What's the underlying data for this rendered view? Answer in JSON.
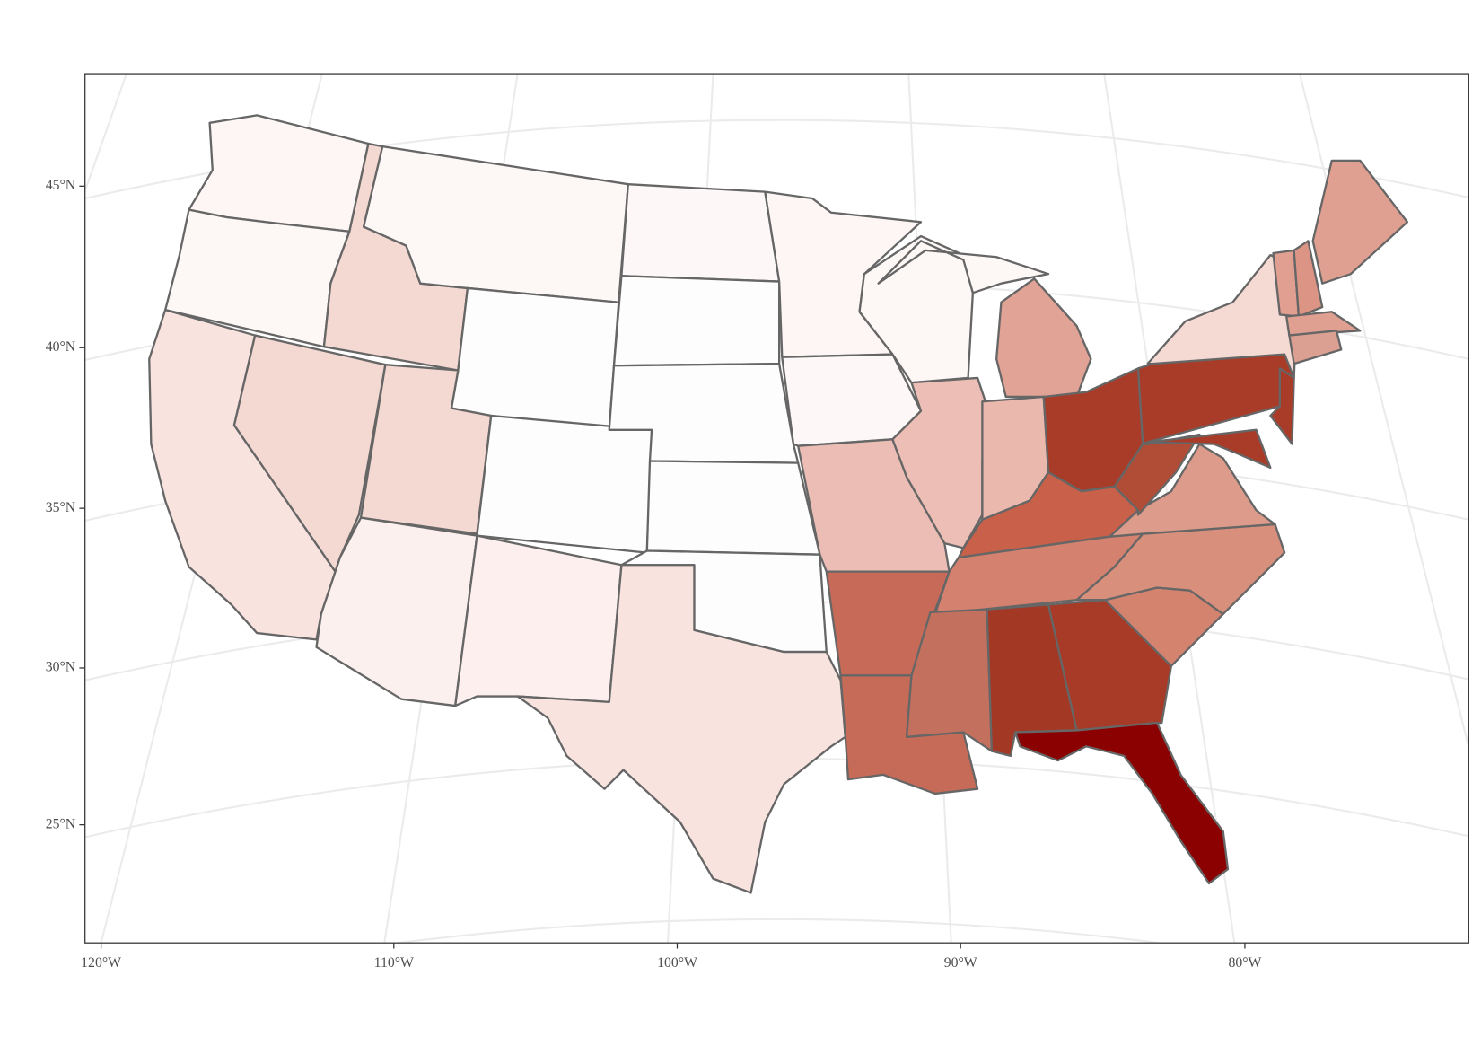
{
  "axes": {
    "y_labels": [
      "45°N",
      "40°N",
      "35°N",
      "30°N",
      "25°N"
    ],
    "x_labels": [
      "120°W",
      "110°W",
      "100°W",
      "90°W",
      "80°W"
    ]
  }
}
